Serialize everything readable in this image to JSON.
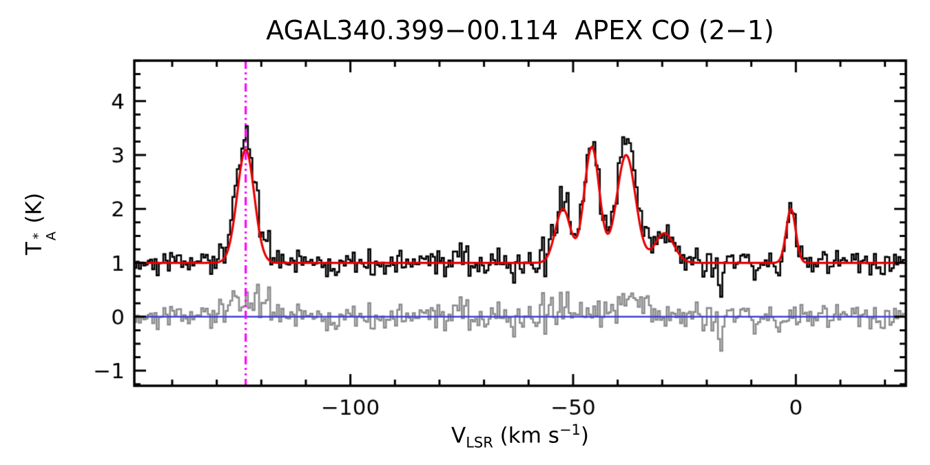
{
  "chart_data": {
    "type": "line",
    "variant": "spectral-line-histogram-with-gaussian-fit",
    "title": "AGAL340.399−00.114  APEX CO (2−1)",
    "xlabel": "V_LSR (km s−1)",
    "ylabel": "T_A* (K)",
    "xlim": [
      -148.5,
      24.7
    ],
    "ylim": [
      -1.28,
      4.75
    ],
    "x_major_ticks": [
      -100,
      -50,
      0
    ],
    "x_tick_labels": [
      "−100",
      "−50",
      "0"
    ],
    "x_minor_step": 10,
    "y_major_ticks": [
      -1,
      0,
      1,
      2,
      3,
      4
    ],
    "y_tick_labels": [
      "−1",
      "0",
      "1",
      "2",
      "3",
      "4"
    ],
    "y_minor_step": 0.25,
    "grid": false,
    "channel_width_kms": 0.5,
    "baseline_level_K": 1.0,
    "noise_sigma_K": 0.13,
    "noise_seed": 20240613,
    "gaussian_fit_components": [
      {
        "center_kms": -123.5,
        "amplitude_K": 2.1,
        "fwhm_kms": 4.5
      },
      {
        "center_kms": -52.3,
        "amplitude_K": 1.0,
        "fwhm_kms": 4.0
      },
      {
        "center_kms": -45.8,
        "amplitude_K": 2.15,
        "fwhm_kms": 4.0
      },
      {
        "center_kms": -38.1,
        "amplitude_K": 2.0,
        "fwhm_kms": 5.0
      },
      {
        "center_kms": -29.5,
        "amplitude_K": 0.55,
        "fwhm_kms": 5.0
      },
      {
        "center_kms": -1.1,
        "amplitude_K": 1.0,
        "fwhm_kms": 2.5
      }
    ],
    "unfit_features": [
      {
        "center_kms": -122.5,
        "amplitude_K": 0.3,
        "fwhm_kms": 9.0
      },
      {
        "center_kms": -37.0,
        "amplitude_K": 0.35,
        "fwhm_kms": 8.0
      },
      {
        "center_kms": -50.0,
        "amplitude_K": 0.15,
        "fwhm_kms": 10.0
      },
      {
        "center_kms": -17.0,
        "amplitude_K": -0.5,
        "fwhm_kms": 1.2
      }
    ],
    "marker_velocity_kms": -123.5,
    "zero_line_level_K": 0,
    "series": [
      {
        "name": "observed-spectrum",
        "color": "#000000",
        "style": "histogram",
        "baseline_K": 1.0
      },
      {
        "name": "gaussian-fit",
        "color": "#e80000",
        "style": "smooth-line"
      },
      {
        "name": "residual-spectrum",
        "color": "#8c8c8c",
        "style": "histogram",
        "baseline_K": 0.0
      },
      {
        "name": "zero-baseline",
        "color": "#4040d8",
        "style": "horizontal-line"
      },
      {
        "name": "velocity-marker",
        "color": "#ff00ff",
        "style": "vertical-dash-dot-line"
      }
    ],
    "axis_color": "#000000"
  },
  "axis_labels": {
    "y": {
      "letter": "T",
      "sup": "*",
      "sub": "A",
      "unit": " (K)"
    },
    "x": {
      "letter": "V",
      "sub": "LSR",
      "unit_pre": " (km s",
      "sup": "−1",
      "unit_post": ")"
    }
  }
}
